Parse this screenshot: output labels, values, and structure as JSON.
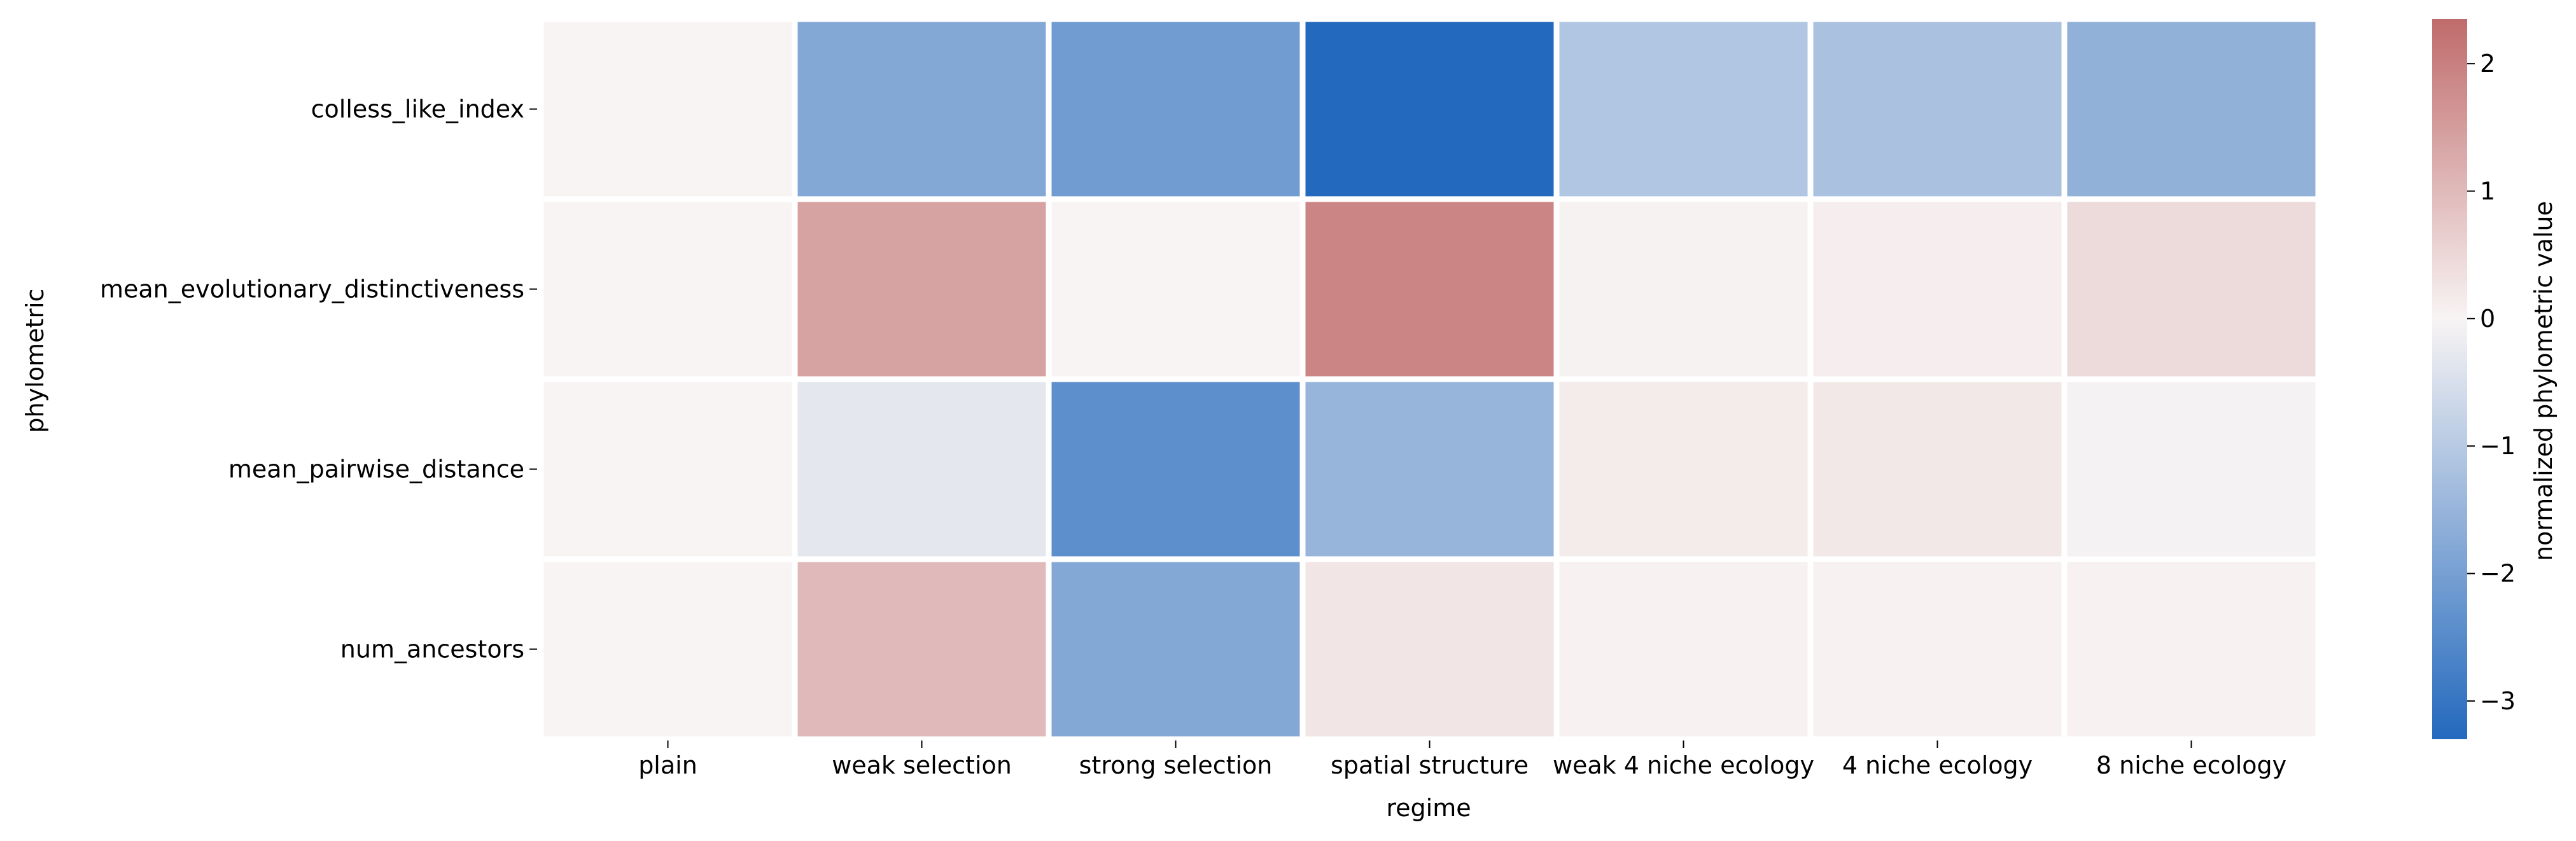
{
  "chart_data": {
    "type": "heatmap",
    "title": "",
    "xlabel": "regime",
    "ylabel": "phylometric",
    "x_categories": [
      "plain",
      "weak selection",
      "strong selection",
      "spatial structure",
      "weak 4 niche ecology",
      "4 niche ecology",
      "8 niche ecology"
    ],
    "y_categories": [
      "colless_like_index",
      "mean_evolutionary_distinctiveness",
      "mean_pairwise_distance",
      "num_ancestors"
    ],
    "values": [
      [
        0.0,
        -1.8,
        -2.1,
        -3.3,
        -1.1,
        -1.2,
        -1.6
      ],
      [
        0.0,
        1.4,
        0.0,
        1.9,
        0.03,
        0.1,
        0.45
      ],
      [
        0.0,
        -0.3,
        -2.4,
        -1.5,
        0.15,
        0.2,
        -0.05
      ],
      [
        0.0,
        1.0,
        -1.8,
        0.25,
        0.06,
        0.06,
        0.06
      ]
    ],
    "colorbar": {
      "label": "normalized phylometric value",
      "min": -3.3,
      "max": 2.35,
      "ticks": [
        -3,
        -2,
        -1,
        0,
        1,
        2
      ],
      "tick_labels": [
        "−3",
        "−2",
        "−1",
        "0",
        "1",
        "2"
      ],
      "colormap": "diverging blue-white-red",
      "low_color": "#2369bd",
      "mid_color": "#f8f4f4",
      "high_color": "#c06b6b"
    },
    "grid": false,
    "legend": "colorbar-right"
  }
}
